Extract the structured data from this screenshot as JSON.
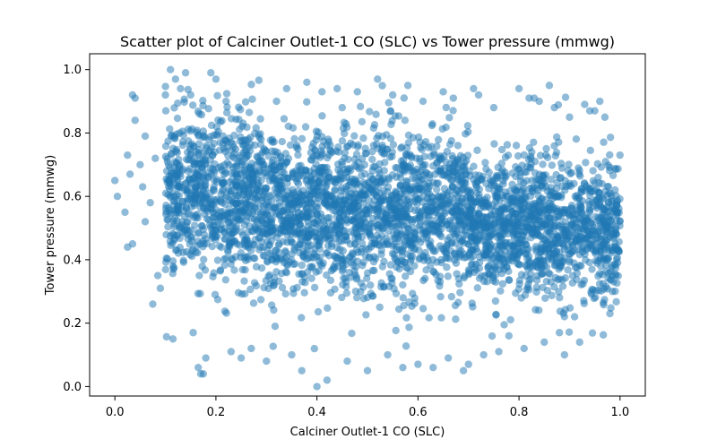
{
  "chart_data": {
    "type": "scatter",
    "title": "Scatter plot of Calciner Outlet-1 CO (SLC) vs Tower pressure (mmwg)",
    "xlabel": "Calciner Outlet-1 CO (SLC)",
    "ylabel": "Tower pressure (mmwg)",
    "xlim": [
      -0.05,
      1.05
    ],
    "ylim": [
      -0.03,
      1.05
    ],
    "xticks": [
      0.0,
      0.2,
      0.4,
      0.6,
      0.8,
      1.0
    ],
    "yticks": [
      0.0,
      0.2,
      0.4,
      0.6,
      0.8,
      1.0
    ],
    "x_tick_labels": [
      "0.0",
      "0.2",
      "0.4",
      "0.6",
      "0.8",
      "1.0"
    ],
    "y_tick_labels": [
      "0.0",
      "0.2",
      "0.4",
      "0.6",
      "0.8",
      "1.0"
    ],
    "grid": false,
    "point_color": "#1f77b4",
    "point_alpha": 0.5,
    "density_summary": [
      {
        "x_range": [
          0.1,
          0.3
        ],
        "y_center": 0.6,
        "y_spread": [
          0.2,
          0.9
        ]
      },
      {
        "x_range": [
          0.3,
          0.7
        ],
        "y_center": 0.55,
        "y_spread": [
          0.15,
          0.85
        ]
      },
      {
        "x_range": [
          0.7,
          1.0
        ],
        "y_center": 0.5,
        "y_spread": [
          0.2,
          0.8
        ]
      }
    ],
    "points": [
      [
        0.0,
        0.65
      ],
      [
        0.005,
        0.6
      ],
      [
        0.02,
        0.55
      ],
      [
        0.025,
        0.73
      ],
      [
        0.025,
        0.44
      ],
      [
        0.03,
        0.67
      ],
      [
        0.035,
        0.92
      ],
      [
        0.04,
        0.91
      ],
      [
        0.04,
        0.84
      ],
      [
        0.035,
        0.45
      ],
      [
        0.05,
        0.7
      ],
      [
        0.055,
        0.63
      ],
      [
        0.06,
        0.79
      ],
      [
        0.06,
        0.52
      ],
      [
        0.07,
        0.58
      ],
      [
        0.075,
        0.26
      ],
      [
        0.08,
        0.72
      ],
      [
        0.085,
        0.35
      ],
      [
        0.09,
        0.31
      ],
      [
        0.1,
        0.92
      ],
      [
        0.11,
        1.0
      ],
      [
        0.115,
        0.15
      ],
      [
        0.12,
        0.97
      ],
      [
        0.13,
        0.94
      ],
      [
        0.14,
        0.99
      ],
      [
        0.15,
        0.92
      ],
      [
        0.155,
        0.17
      ],
      [
        0.165,
        0.06
      ],
      [
        0.17,
        0.04
      ],
      [
        0.175,
        0.04
      ],
      [
        0.18,
        0.09
      ],
      [
        0.19,
        0.99
      ],
      [
        0.2,
        0.97
      ],
      [
        0.22,
        0.9
      ],
      [
        0.23,
        0.11
      ],
      [
        0.25,
        0.09
      ],
      [
        0.27,
        0.12
      ],
      [
        0.3,
        0.08
      ],
      [
        0.32,
        0.9
      ],
      [
        0.34,
        0.94
      ],
      [
        0.35,
        0.1
      ],
      [
        0.37,
        0.05
      ],
      [
        0.38,
        0.96
      ],
      [
        0.4,
        0.0
      ],
      [
        0.41,
        0.93
      ],
      [
        0.42,
        0.02
      ],
      [
        0.44,
        0.94
      ],
      [
        0.45,
        0.88
      ],
      [
        0.46,
        0.08
      ],
      [
        0.48,
        0.93
      ],
      [
        0.5,
        0.05
      ],
      [
        0.52,
        0.97
      ],
      [
        0.54,
        0.1
      ],
      [
        0.55,
        0.92
      ],
      [
        0.57,
        0.06
      ],
      [
        0.58,
        0.95
      ],
      [
        0.6,
        0.07
      ],
      [
        0.61,
        0.9
      ],
      [
        0.63,
        0.06
      ],
      [
        0.65,
        0.93
      ],
      [
        0.66,
        0.09
      ],
      [
        0.67,
        0.91
      ],
      [
        0.69,
        0.05
      ],
      [
        0.7,
        0.07
      ],
      [
        0.71,
        0.94
      ],
      [
        0.72,
        0.92
      ],
      [
        0.73,
        0.1
      ],
      [
        0.75,
        0.88
      ],
      [
        0.76,
        0.11
      ],
      [
        0.78,
        0.16
      ],
      [
        0.8,
        0.94
      ],
      [
        0.81,
        0.12
      ],
      [
        0.82,
        0.91
      ],
      [
        0.83,
        0.91
      ],
      [
        0.84,
        0.9
      ],
      [
        0.85,
        0.14
      ],
      [
        0.86,
        0.95
      ],
      [
        0.87,
        0.88
      ],
      [
        0.88,
        0.17
      ],
      [
        0.89,
        0.1
      ],
      [
        0.9,
        0.85
      ],
      [
        0.91,
        0.22
      ],
      [
        0.92,
        0.14
      ],
      [
        0.93,
        0.89
      ],
      [
        0.94,
        0.87
      ],
      [
        0.95,
        0.87
      ],
      [
        0.96,
        0.9
      ],
      [
        0.97,
        0.85
      ],
      [
        0.98,
        0.23
      ],
      [
        0.985,
        0.3
      ],
      [
        0.99,
        0.62
      ],
      [
        0.995,
        0.55
      ]
    ]
  }
}
